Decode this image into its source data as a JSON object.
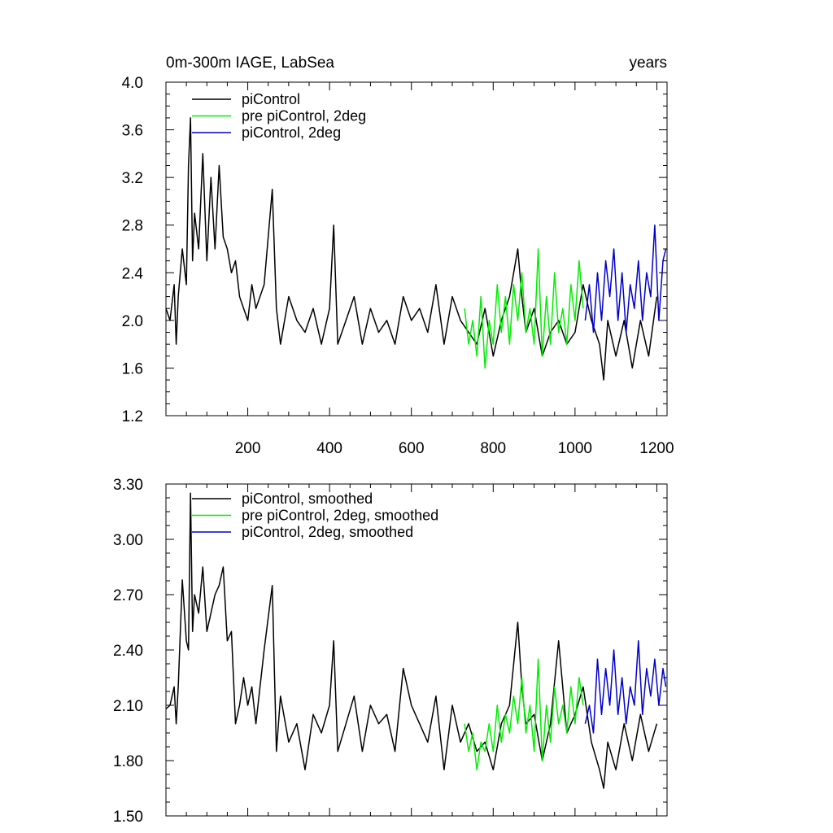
{
  "chart_data": [
    {
      "type": "line",
      "title_left": "0m-300m IAGE, LabSea",
      "title_right": "years",
      "xlabel": "",
      "ylabel": "",
      "xlim": [
        0,
        1225
      ],
      "ylim": [
        1.2,
        4.0
      ],
      "xticks": [
        200,
        400,
        600,
        800,
        1000,
        1200
      ],
      "yticks": [
        1.2,
        1.6,
        2.0,
        2.4,
        2.8,
        3.2,
        3.6,
        4.0
      ],
      "ytick_labels": [
        "1.2",
        "1.6",
        "2.0",
        "2.4",
        "2.8",
        "3.2",
        "3.6",
        "4.0"
      ],
      "xtick_labels": [
        "200",
        "400",
        "600",
        "800",
        "1000",
        "1200"
      ],
      "legend_position": "top-left",
      "series": [
        {
          "name": "piControl",
          "color": "#000000",
          "x": [
            0,
            10,
            20,
            25,
            30,
            40,
            50,
            55,
            60,
            65,
            70,
            80,
            90,
            100,
            110,
            120,
            130,
            140,
            150,
            160,
            170,
            180,
            190,
            200,
            210,
            220,
            240,
            260,
            270,
            280,
            300,
            320,
            340,
            360,
            380,
            400,
            410,
            420,
            440,
            460,
            480,
            500,
            520,
            540,
            560,
            580,
            600,
            620,
            640,
            660,
            680,
            700,
            720,
            740,
            760,
            780,
            800,
            820,
            840,
            860,
            870,
            880,
            900,
            920,
            940,
            960,
            980,
            1000,
            1020,
            1040,
            1060,
            1070,
            1080,
            1100,
            1120,
            1140,
            1160,
            1180,
            1200
          ],
          "y": [
            2.1,
            2.0,
            2.3,
            1.8,
            2.2,
            2.6,
            2.3,
            3.3,
            3.7,
            2.5,
            2.9,
            2.6,
            3.4,
            2.5,
            3.2,
            2.6,
            3.3,
            2.7,
            2.6,
            2.4,
            2.5,
            2.2,
            2.1,
            2.0,
            2.3,
            2.1,
            2.3,
            3.1,
            2.1,
            1.8,
            2.2,
            2.0,
            1.9,
            2.1,
            1.8,
            2.1,
            2.8,
            1.8,
            2.0,
            2.2,
            1.8,
            2.1,
            1.9,
            2.0,
            1.8,
            2.2,
            2.0,
            2.1,
            1.9,
            2.3,
            1.8,
            2.2,
            2.0,
            1.9,
            1.8,
            2.1,
            1.7,
            2.0,
            2.2,
            2.6,
            2.2,
            1.9,
            2.1,
            1.7,
            1.9,
            2.0,
            1.8,
            1.9,
            2.3,
            2.0,
            1.8,
            1.5,
            2.0,
            1.7,
            2.0,
            1.6,
            2.0,
            1.7,
            2.2
          ]
        },
        {
          "name": "pre piControl, 2deg",
          "color": "#00ee00",
          "x": [
            730,
            740,
            750,
            760,
            770,
            780,
            790,
            800,
            810,
            820,
            830,
            840,
            850,
            860,
            870,
            880,
            890,
            900,
            910,
            920,
            930,
            940,
            950,
            960,
            970,
            980,
            990,
            1000,
            1010,
            1020
          ],
          "y": [
            2.1,
            1.8,
            2.0,
            1.7,
            2.2,
            1.6,
            2.0,
            1.8,
            2.3,
            1.9,
            2.2,
            1.8,
            2.3,
            2.0,
            2.4,
            1.9,
            2.1,
            1.8,
            2.6,
            1.7,
            2.2,
            1.8,
            2.4,
            1.9,
            2.1,
            1.8,
            2.3,
            2.0,
            2.5,
            2.1
          ]
        },
        {
          "name": "piControl, 2deg",
          "color": "#0000cc",
          "x": [
            1025,
            1035,
            1045,
            1055,
            1065,
            1075,
            1085,
            1095,
            1105,
            1115,
            1125,
            1135,
            1145,
            1155,
            1165,
            1175,
            1185,
            1195,
            1205,
            1215,
            1222
          ],
          "y": [
            2.0,
            2.3,
            1.9,
            2.4,
            2.0,
            2.5,
            2.2,
            2.6,
            2.0,
            2.4,
            1.9,
            2.3,
            2.1,
            2.5,
            2.0,
            2.4,
            2.2,
            2.8,
            2.0,
            2.5,
            2.6
          ]
        }
      ]
    },
    {
      "type": "line",
      "xlabel": "",
      "ylabel": "",
      "xlim": [
        0,
        1225
      ],
      "ylim": [
        1.5,
        3.3
      ],
      "xticks": [
        200,
        400,
        600,
        800,
        1000,
        1200
      ],
      "yticks": [
        1.5,
        1.8,
        2.1,
        2.4,
        2.7,
        3.0,
        3.3
      ],
      "ytick_labels": [
        "1.50",
        "1.80",
        "2.10",
        "2.40",
        "2.70",
        "3.00",
        "3.30"
      ],
      "legend_position": "top-left",
      "series": [
        {
          "name": "piControl, smoothed",
          "color": "#000000",
          "x": [
            0,
            10,
            20,
            25,
            30,
            40,
            50,
            55,
            60,
            65,
            70,
            80,
            90,
            100,
            110,
            120,
            130,
            140,
            150,
            160,
            170,
            180,
            190,
            200,
            210,
            220,
            240,
            260,
            270,
            280,
            300,
            320,
            340,
            360,
            380,
            400,
            410,
            420,
            440,
            460,
            480,
            500,
            520,
            540,
            560,
            580,
            600,
            620,
            640,
            660,
            680,
            700,
            720,
            740,
            760,
            780,
            800,
            820,
            840,
            860,
            870,
            880,
            900,
            920,
            940,
            960,
            980,
            1000,
            1020,
            1040,
            1060,
            1070,
            1080,
            1100,
            1120,
            1140,
            1160,
            1180,
            1200
          ],
          "y": [
            2.08,
            2.1,
            2.2,
            2.0,
            2.2,
            2.78,
            2.45,
            2.4,
            3.25,
            2.5,
            2.7,
            2.6,
            2.85,
            2.5,
            2.6,
            2.7,
            2.75,
            2.85,
            2.45,
            2.5,
            2.0,
            2.1,
            2.25,
            2.1,
            2.2,
            2.0,
            2.4,
            2.75,
            1.85,
            2.15,
            1.9,
            2.0,
            1.75,
            2.05,
            1.95,
            2.1,
            2.45,
            1.85,
            2.0,
            2.15,
            1.85,
            2.1,
            2.0,
            2.05,
            1.85,
            2.3,
            2.1,
            2.0,
            1.9,
            2.15,
            1.75,
            2.1,
            1.9,
            2.0,
            1.85,
            1.9,
            1.75,
            2.0,
            2.1,
            2.55,
            2.2,
            2.0,
            2.05,
            1.8,
            2.0,
            2.45,
            1.95,
            2.05,
            2.2,
            1.9,
            1.75,
            1.65,
            1.9,
            1.75,
            2.0,
            1.8,
            2.05,
            1.85,
            2.0
          ]
        },
        {
          "name": "pre piControl, 2deg, smoothed",
          "color": "#00ee00",
          "x": [
            730,
            740,
            750,
            760,
            770,
            780,
            790,
            800,
            810,
            820,
            830,
            840,
            850,
            860,
            870,
            880,
            890,
            900,
            910,
            920,
            930,
            940,
            950,
            960,
            970,
            980,
            990,
            1000,
            1010,
            1020
          ],
          "y": [
            2.0,
            1.85,
            1.95,
            1.75,
            1.9,
            1.85,
            2.0,
            1.85,
            2.1,
            1.9,
            2.05,
            1.95,
            2.15,
            2.0,
            2.25,
            1.95,
            2.1,
            1.85,
            2.35,
            1.8,
            2.1,
            1.9,
            2.2,
            2.0,
            2.1,
            1.95,
            2.2,
            2.0,
            2.25,
            2.1
          ]
        },
        {
          "name": "piControl, 2deg, smoothed",
          "color": "#0000cc",
          "x": [
            1025,
            1035,
            1045,
            1055,
            1065,
            1075,
            1085,
            1095,
            1105,
            1115,
            1125,
            1135,
            1145,
            1155,
            1165,
            1175,
            1185,
            1195,
            1205,
            1215,
            1222
          ],
          "y": [
            2.0,
            2.1,
            1.95,
            2.35,
            2.05,
            2.3,
            2.1,
            2.4,
            2.05,
            2.25,
            2.0,
            2.2,
            2.1,
            2.45,
            2.05,
            2.3,
            2.15,
            2.35,
            2.1,
            2.3,
            2.2
          ]
        }
      ]
    }
  ]
}
